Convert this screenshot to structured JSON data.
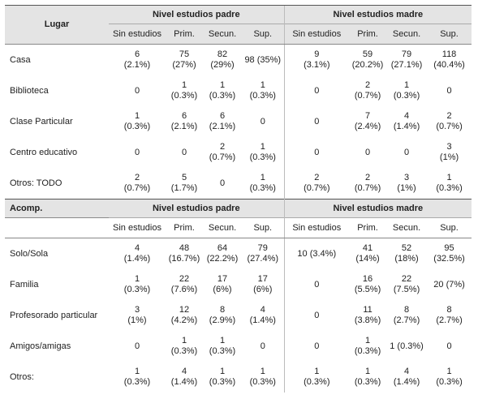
{
  "sections": [
    {
      "header": {
        "label": "Lugar",
        "groups": [
          "Nivel estudios padre",
          "Nivel estudios madre"
        ],
        "columns": [
          "Sin estudios",
          "Prim.",
          "Secun.",
          "Sup.",
          "Sin estudios",
          "Prim.",
          "Secun.",
          "Sup."
        ]
      },
      "rows": [
        {
          "label": "Casa",
          "cells": [
            [
              "6",
              "(2.1%)"
            ],
            [
              "75",
              "(27%)"
            ],
            [
              "82",
              "(29%)"
            ],
            [
              "98 (35%)"
            ],
            [
              "9",
              "(3.1%)"
            ],
            [
              "59",
              "(20.2%)"
            ],
            [
              "79",
              "(27.1%)"
            ],
            [
              "118",
              "(40.4%)"
            ]
          ]
        },
        {
          "label": "Biblioteca",
          "cells": [
            [
              "0"
            ],
            [
              "1",
              "(0.3%)"
            ],
            [
              "1",
              "(0.3%)"
            ],
            [
              "1",
              "(0.3%)"
            ],
            [
              "0"
            ],
            [
              "2",
              "(0.7%)"
            ],
            [
              "1",
              "(0.3%)"
            ],
            [
              "0"
            ]
          ]
        },
        {
          "label": "Clase Particular",
          "cells": [
            [
              "1",
              "(0.3%)"
            ],
            [
              "6",
              "(2.1%)"
            ],
            [
              "6",
              "(2.1%)"
            ],
            [
              "0"
            ],
            [
              "0"
            ],
            [
              "7",
              "(2.4%)"
            ],
            [
              "4",
              "(1.4%)"
            ],
            [
              "2",
              "(0.7%)"
            ]
          ]
        },
        {
          "label": "Centro educativo",
          "cells": [
            [
              "0"
            ],
            [
              "0"
            ],
            [
              "2",
              "(0.7%)"
            ],
            [
              "1",
              "(0.3%)"
            ],
            [
              "0"
            ],
            [
              "0"
            ],
            [
              "0"
            ],
            [
              "3",
              "(1%)"
            ]
          ]
        },
        {
          "label": "Otros: TODO",
          "cells": [
            [
              "2",
              "(0.7%)"
            ],
            [
              "5",
              "(1.7%)"
            ],
            [
              "0"
            ],
            [
              "1",
              "(0.3%)"
            ],
            [
              "2",
              "(0.7%)"
            ],
            [
              "2",
              "(0.7%)"
            ],
            [
              "3",
              "(1%)"
            ],
            [
              "1",
              "(0.3%)"
            ]
          ]
        }
      ]
    },
    {
      "header": {
        "label": "Acomp.",
        "groups": [
          "Nivel estudios padre",
          "Nivel estudios madre"
        ],
        "columns": [
          "Sin estudios",
          "Prim.",
          "Secun.",
          "Sup.",
          "Sin estudios",
          "Prim.",
          "Secun.",
          "Sup."
        ]
      },
      "rows": [
        {
          "label": "Solo/Sola",
          "cells": [
            [
              "4",
              "(1.4%)"
            ],
            [
              "48",
              "(16.7%)"
            ],
            [
              "64",
              "(22.2%)"
            ],
            [
              "79",
              "(27.4%)"
            ],
            [
              "10 (3.4%)"
            ],
            [
              "41",
              "(14%)"
            ],
            [
              "52",
              "(18%)"
            ],
            [
              "95",
              "(32.5%)"
            ]
          ]
        },
        {
          "label": "Familia",
          "cells": [
            [
              "1",
              "(0.3%)"
            ],
            [
              "22",
              "(7.6%)"
            ],
            [
              "17",
              "(6%)"
            ],
            [
              "17",
              "(6%)"
            ],
            [
              "0"
            ],
            [
              "16",
              "(5.5%)"
            ],
            [
              "22",
              "(7.5%)"
            ],
            [
              "20 (7%)"
            ]
          ]
        },
        {
          "label": "Profesorado particular",
          "cells": [
            [
              "3",
              "(1%)"
            ],
            [
              "12",
              "(4.2%)"
            ],
            [
              "8",
              "(2.9%)"
            ],
            [
              "4",
              "(1.4%)"
            ],
            [
              "0"
            ],
            [
              "11",
              "(3.8%)"
            ],
            [
              "8",
              "(2.7%)"
            ],
            [
              "8",
              "(2.7%)"
            ]
          ]
        },
        {
          "label": "Amigos/amigas",
          "cells": [
            [
              "0"
            ],
            [
              "1",
              "(0.3%)"
            ],
            [
              "1",
              "(0.3%)"
            ],
            [
              "0"
            ],
            [
              "0"
            ],
            [
              "1",
              "(0.3%)"
            ],
            [
              "1 (0.3%)"
            ],
            [
              "0"
            ]
          ]
        },
        {
          "label": "Otros:",
          "cells": [
            [
              "1",
              "(0.3%)"
            ],
            [
              "4",
              "(1.4%)"
            ],
            [
              "1",
              "(0.3%)"
            ],
            [
              "1",
              "(0.3%)"
            ],
            [
              "1",
              "(0.3%)"
            ],
            [
              "1",
              "(0.3%)"
            ],
            [
              "4",
              "(1.4%)"
            ],
            [
              "1",
              "(0.3%)"
            ]
          ]
        }
      ]
    }
  ]
}
